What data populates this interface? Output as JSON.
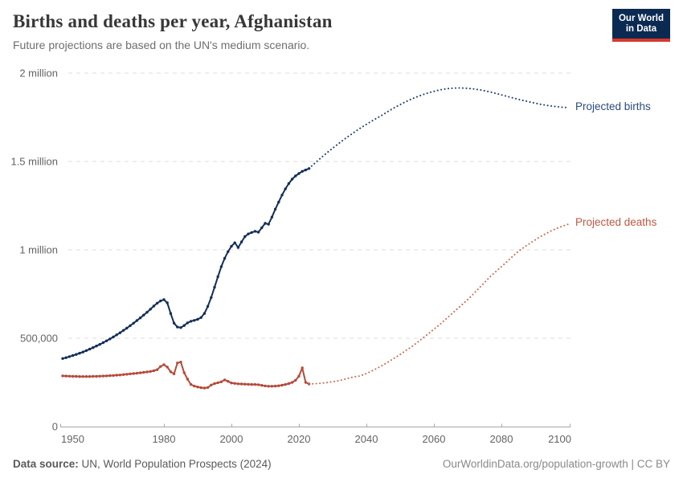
{
  "header": {
    "title": "Births and deaths per year, Afghanistan",
    "subtitle": "Future projections are based on the UN's medium scenario.",
    "logo": {
      "line1": "Our World",
      "line2": "in Data",
      "bg_color": "#0b2a52",
      "accent_color": "#d7382c"
    }
  },
  "footer": {
    "source_label": "Data source:",
    "source_text": " UN, World Population Prospects (2024)",
    "link_text": "OurWorldinData.org/population-growth | CC BY"
  },
  "chart_data": {
    "type": "line",
    "title": "Births and deaths per year, Afghanistan",
    "subtitle": "Future projections are based on the UN's medium scenario.",
    "grid": true,
    "x_axis": {
      "min": 1950,
      "max": 2100,
      "ticks": [
        {
          "year": 1950,
          "label": "1950"
        },
        {
          "year": 1980,
          "label": "1980"
        },
        {
          "year": 2000,
          "label": "2000"
        },
        {
          "year": 2020,
          "label": "2020"
        },
        {
          "year": 2040,
          "label": "2040"
        },
        {
          "year": 2060,
          "label": "2060"
        },
        {
          "year": 2080,
          "label": "2080"
        },
        {
          "year": 2100,
          "label": "2100"
        }
      ]
    },
    "y_axis": {
      "min": 0,
      "max": 2000000,
      "ticks": [
        {
          "value": 0,
          "label": "0"
        },
        {
          "value": 500000,
          "label": "500,000"
        },
        {
          "value": 1000000,
          "label": "1 million"
        },
        {
          "value": 1500000,
          "label": "1.5 million"
        },
        {
          "value": 2000000,
          "label": "2 million"
        }
      ]
    },
    "series": [
      {
        "id": "births-historical",
        "label": "Births",
        "color": "#132f58",
        "line": "solid",
        "markers": true,
        "start_year": 1950,
        "values": [
          385000,
          390000,
          396000,
          402000,
          408000,
          415000,
          422000,
          430000,
          438000,
          447000,
          456000,
          465000,
          475000,
          485000,
          496000,
          507000,
          519000,
          531000,
          544000,
          557000,
          571000,
          585000,
          600000,
          615000,
          631000,
          647000,
          664000,
          682000,
          698000,
          711000,
          718000,
          700000,
          640000,
          585000,
          563000,
          560000,
          572000,
          587000,
          596000,
          601000,
          607000,
          617000,
          640000,
          680000,
          730000,
          788000,
          848000,
          905000,
          952000,
          990000,
          1020000,
          1040000,
          1013000,
          1045000,
          1075000,
          1090000,
          1098000,
          1105000,
          1100000,
          1125000,
          1150000,
          1145000,
          1185000,
          1230000,
          1270000,
          1310000,
          1345000,
          1375000,
          1400000,
          1418000,
          1432000,
          1444000,
          1452000,
          1460000
        ]
      },
      {
        "id": "births-projected",
        "label": "Projected births",
        "color": "#1d3d6e",
        "label_color": "#2b4a7e",
        "line": "dotted",
        "markers": false,
        "start_year": 2023,
        "values": [
          1460000,
          1478000,
          1495000,
          1512000,
          1528000,
          1544000,
          1560000,
          1575000,
          1590000,
          1605000,
          1619000,
          1633000,
          1647000,
          1660000,
          1673000,
          1686000,
          1698000,
          1710000,
          1722000,
          1733000,
          1744000,
          1755000,
          1766000,
          1778000,
          1790000,
          1801000,
          1812000,
          1822000,
          1832000,
          1841000,
          1850000,
          1858000,
          1866000,
          1873000,
          1880000,
          1886000,
          1892000,
          1897000,
          1902000,
          1906000,
          1909000,
          1912000,
          1914000,
          1915000,
          1916000,
          1916000,
          1915000,
          1914000,
          1912000,
          1910000,
          1907000,
          1904000,
          1900000,
          1896000,
          1892000,
          1887000,
          1882000,
          1877000,
          1872000,
          1867000,
          1862000,
          1857000,
          1852000,
          1847000,
          1843000,
          1838000,
          1834000,
          1830000,
          1826000,
          1822000,
          1819000,
          1816000,
          1813000,
          1811000,
          1809000,
          1807000,
          1806000,
          1805000
        ]
      },
      {
        "id": "deaths-historical",
        "label": "Deaths",
        "color": "#b64a3b",
        "line": "solid",
        "markers": true,
        "start_year": 1950,
        "values": [
          287000,
          286000,
          285000,
          284000,
          284000,
          283000,
          283000,
          283000,
          283000,
          284000,
          284000,
          285000,
          286000,
          287000,
          288000,
          289000,
          291000,
          292000,
          294000,
          296000,
          298000,
          300000,
          302000,
          304000,
          307000,
          309000,
          312000,
          316000,
          322000,
          340000,
          350000,
          337000,
          310000,
          298000,
          360000,
          365000,
          305000,
          268000,
          238000,
          229000,
          224000,
          220000,
          218000,
          221000,
          235000,
          243000,
          248000,
          253000,
          264000,
          256000,
          247000,
          244000,
          242000,
          241000,
          240000,
          239000,
          238000,
          238000,
          237000,
          233000,
          230000,
          228000,
          228000,
          229000,
          231000,
          234000,
          238000,
          243000,
          250000,
          262000,
          285000,
          332000,
          250000,
          241000
        ]
      },
      {
        "id": "deaths-projected",
        "label": "Projected deaths",
        "color": "#c96b54",
        "label_color": "#bf5642",
        "line": "dotted",
        "markers": false,
        "start_year": 2023,
        "values": [
          241000,
          242000,
          243000,
          244000,
          246000,
          248000,
          251000,
          254000,
          257000,
          261000,
          265000,
          270000,
          275000,
          280000,
          283000,
          286000,
          293000,
          300000,
          309000,
          318000,
          328000,
          338000,
          349000,
          360000,
          372000,
          384000,
          396000,
          408000,
          421000,
          434000,
          447000,
          460000,
          475000,
          490000,
          505000,
          520000,
          535000,
          551000,
          566000,
          582000,
          599000,
          616000,
          633000,
          650000,
          667000,
          684000,
          701000,
          718000,
          737000,
          757000,
          776000,
          796000,
          815000,
          835000,
          854000,
          871000,
          888000,
          905000,
          922000,
          939000,
          957000,
          974000,
          991000,
          1005000,
          1018000,
          1031000,
          1044000,
          1056000,
          1068000,
          1079000,
          1090000,
          1100000,
          1110000,
          1118000,
          1126000,
          1133000,
          1140000,
          1146000
        ]
      }
    ]
  }
}
